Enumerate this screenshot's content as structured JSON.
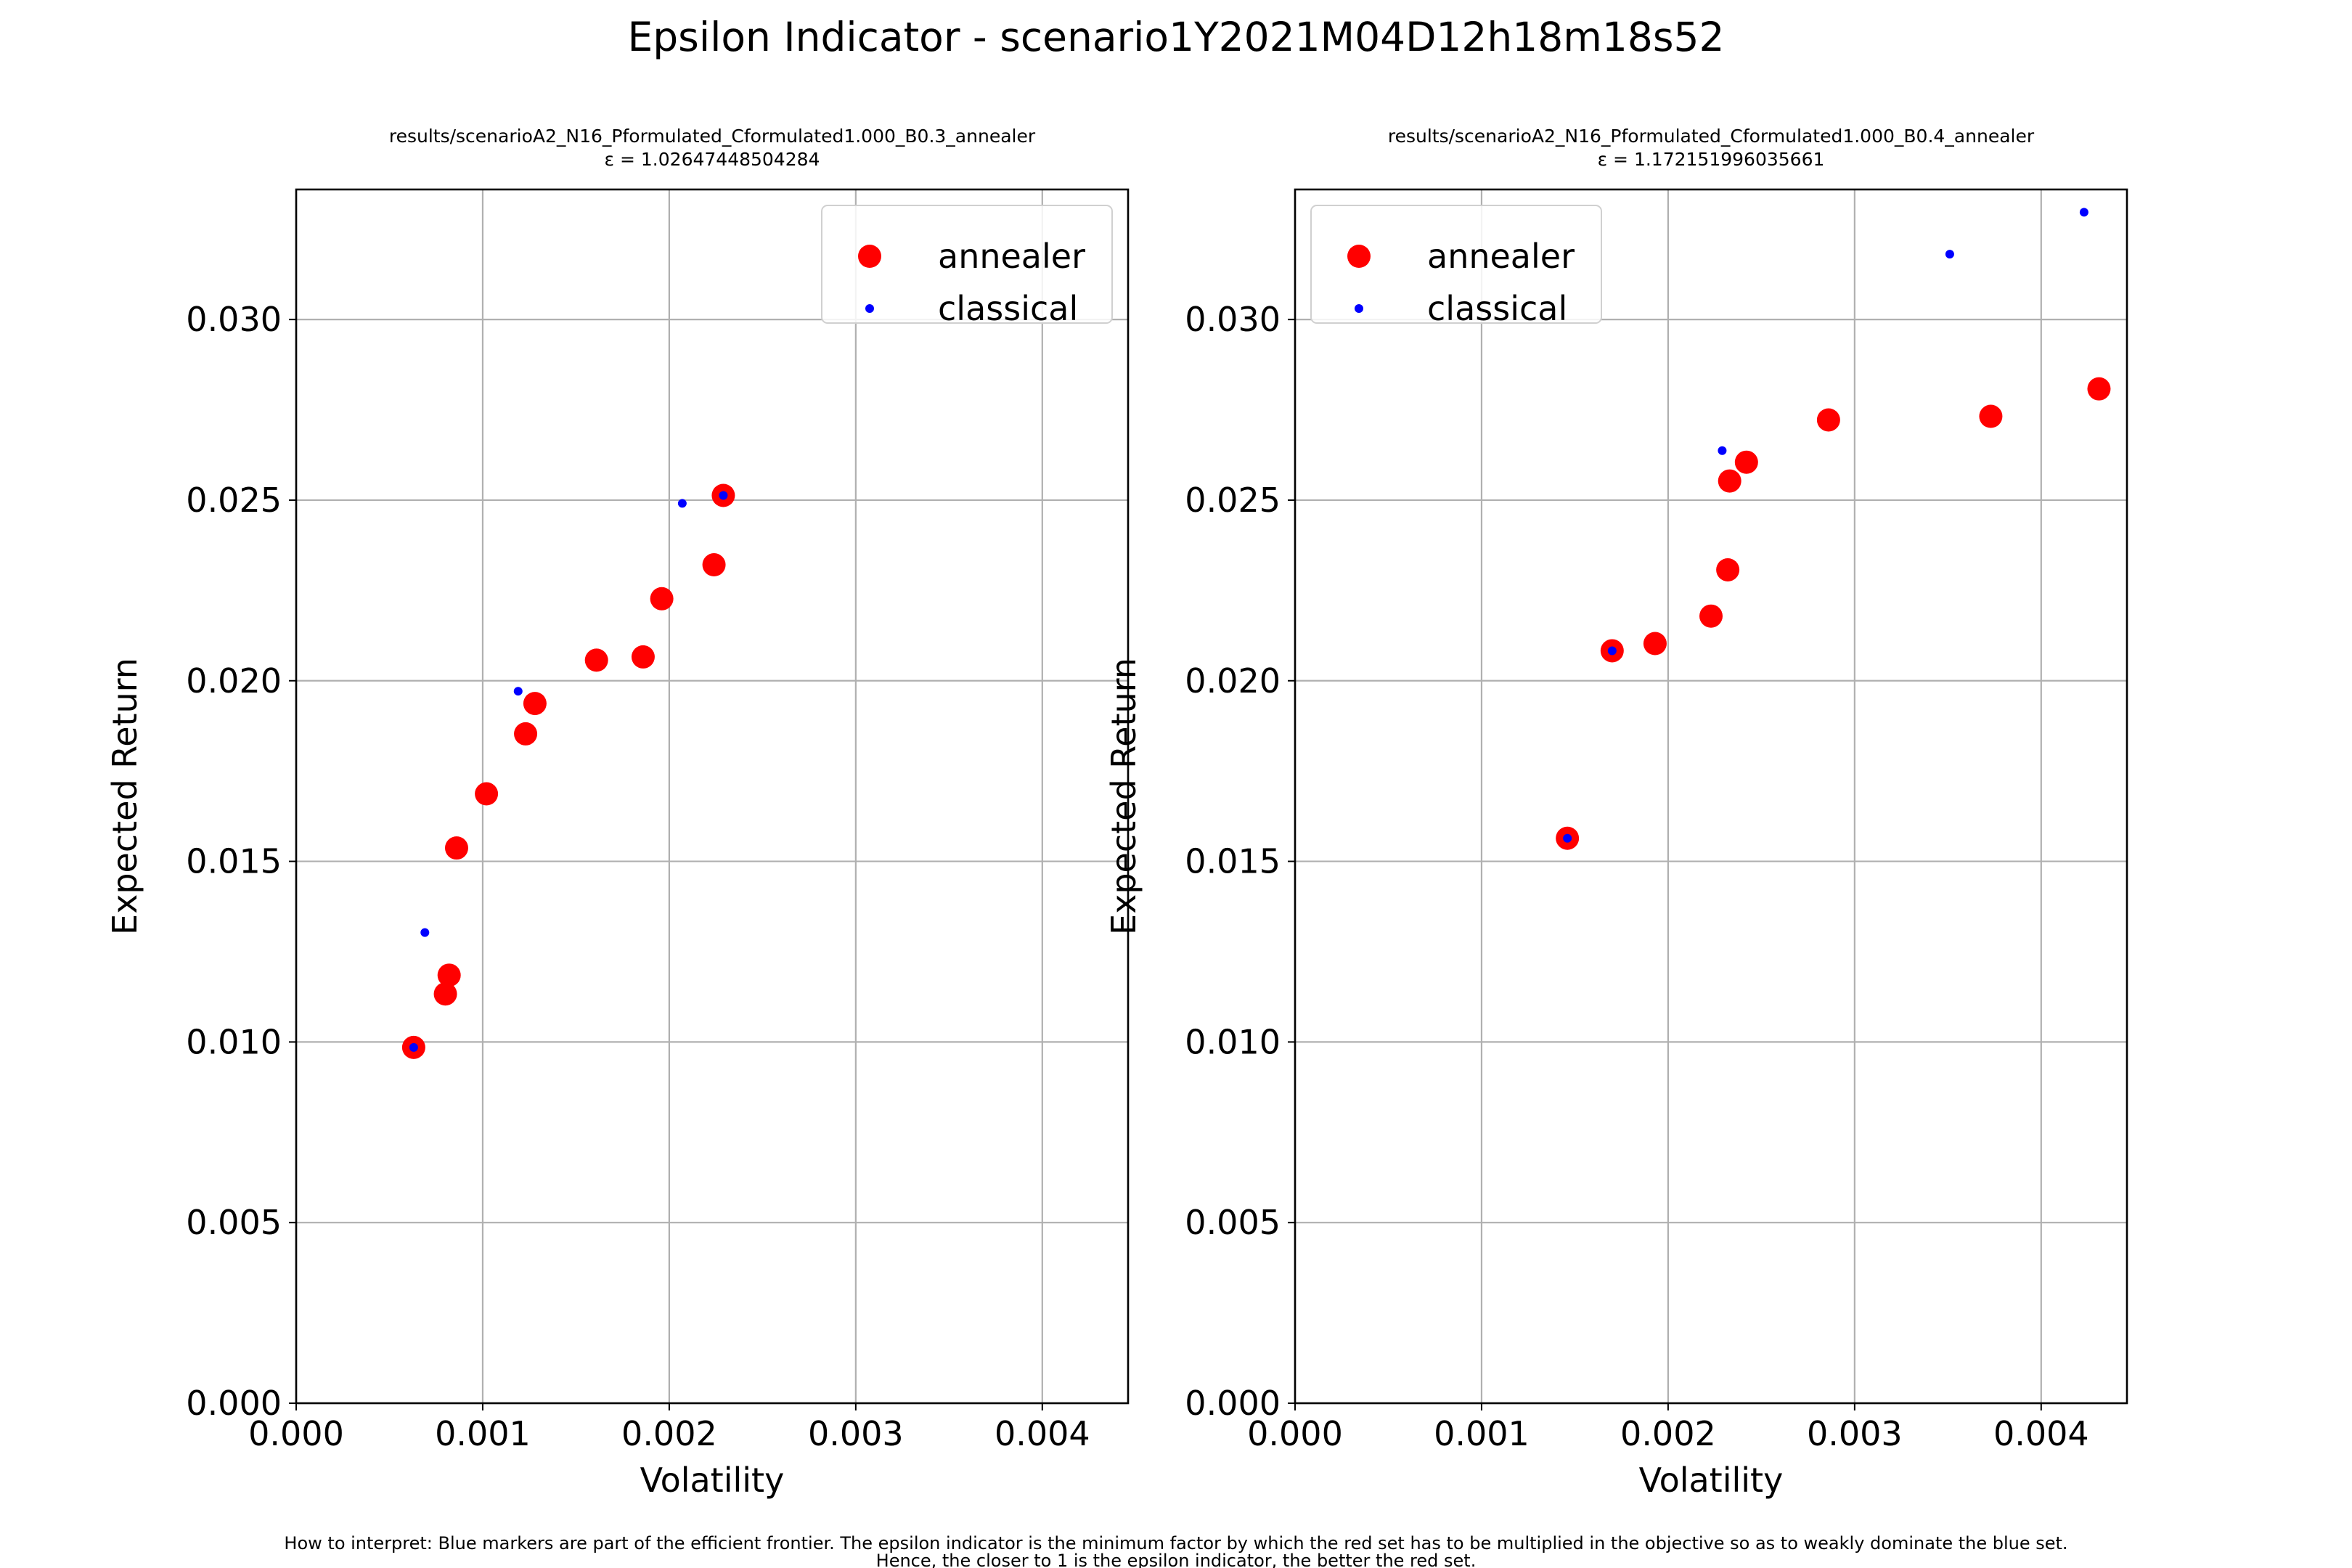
{
  "figure": {
    "title": "Epsilon Indicator - scenario1Y2021M04D12h18m18s52",
    "note_line1": "How to interpret: Blue markers are part of the efficient frontier. The epsilon indicator is the minimum factor by which the red set has to be multiplied in the objective so as to weakly dominate the blue set.",
    "note_line2": "Hence, the closer to 1 is the epsilon indicator, the better the red set."
  },
  "colors": {
    "annealer": "#ff0000",
    "classical": "#0000ff",
    "grid": "#b0b0b0"
  },
  "chart_data": [
    {
      "type": "scatter",
      "title_line1": "results/scenarioA2_N16_Pformulated_Cformulated1.000_B0.3_annealer",
      "title_line2": "ε = 1.02647448504284",
      "xlabel": "Volatility",
      "ylabel": "Expected Return",
      "xlim": [
        0,
        0.00446
      ],
      "ylim": [
        0,
        0.0336
      ],
      "xticks": [
        0,
        0.001,
        0.002,
        0.003,
        0.004
      ],
      "xtick_labels": [
        "0.000",
        "0.001",
        "0.002",
        "0.003",
        "0.004"
      ],
      "yticks": [
        0,
        0.005,
        0.01,
        0.015,
        0.02,
        0.025,
        0.03
      ],
      "ytick_labels": [
        "0.000",
        "0.005",
        "0.010",
        "0.015",
        "0.020",
        "0.025",
        "0.030"
      ],
      "grid": true,
      "legend_position": "upper-right",
      "series": [
        {
          "name": "annealer",
          "x": [
            0.00063,
            0.0008,
            0.00082,
            0.00086,
            0.00102,
            0.00123,
            0.00128,
            0.00161,
            0.00186,
            0.00196,
            0.00224,
            0.00229
          ],
          "y": [
            0.00985,
            0.01133,
            0.01185,
            0.01537,
            0.01687,
            0.01853,
            0.01937,
            0.02057,
            0.02066,
            0.02227,
            0.02321,
            0.02513
          ]
        },
        {
          "name": "classical",
          "x": [
            0.00063,
            0.00069,
            0.00119,
            0.00207,
            0.00229
          ],
          "y": [
            0.00985,
            0.01303,
            0.01971,
            0.02491,
            0.02513
          ]
        }
      ]
    },
    {
      "type": "scatter",
      "title_line1": "results/scenarioA2_N16_Pformulated_Cformulated1.000_B0.4_annealer",
      "title_line2": "ε = 1.172151996035661",
      "xlabel": "Volatility",
      "ylabel": "Expected Return",
      "xlim": [
        0,
        0.00446
      ],
      "ylim": [
        0,
        0.0336
      ],
      "xticks": [
        0,
        0.001,
        0.002,
        0.003,
        0.004
      ],
      "xtick_labels": [
        "0.000",
        "0.001",
        "0.002",
        "0.003",
        "0.004"
      ],
      "yticks": [
        0,
        0.005,
        0.01,
        0.015,
        0.02,
        0.025,
        0.03
      ],
      "ytick_labels": [
        "0.000",
        "0.005",
        "0.010",
        "0.015",
        "0.020",
        "0.025",
        "0.030"
      ],
      "grid": true,
      "legend_position": "upper-left",
      "series": [
        {
          "name": "annealer",
          "x": [
            0.00146,
            0.0017,
            0.00193,
            0.00223,
            0.00232,
            0.00233,
            0.00242,
            0.00286,
            0.00373,
            0.00431
          ],
          "y": [
            0.01564,
            0.02083,
            0.02103,
            0.02179,
            0.02307,
            0.02553,
            0.02605,
            0.02722,
            0.02732,
            0.02808
          ]
        },
        {
          "name": "classical",
          "x": [
            0.00146,
            0.0017,
            0.00229,
            0.00351,
            0.00423
          ],
          "y": [
            0.01564,
            0.02083,
            0.02637,
            0.03181,
            0.03297
          ]
        }
      ]
    }
  ]
}
